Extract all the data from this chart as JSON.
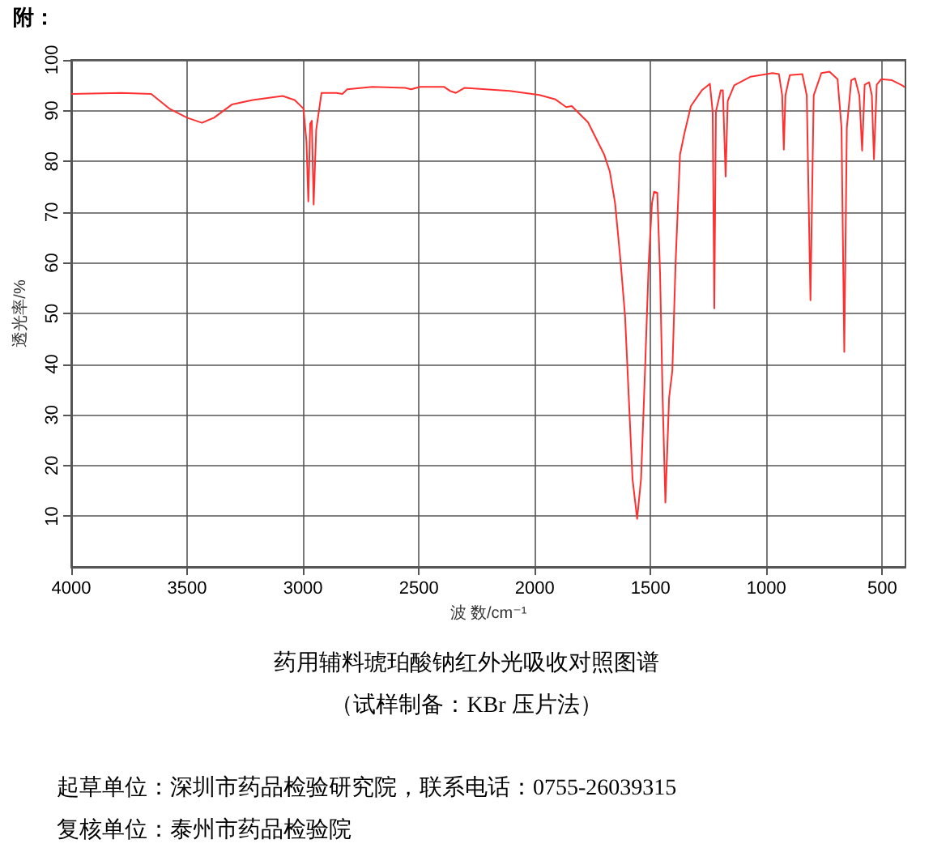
{
  "chart_data": {
    "type": "line",
    "title": "药用辅料琥珀酸钠红外光吸收对照图谱",
    "subtitle": "（试样制备：KBr 压片法）",
    "xlabel": "波 数/cm⁻¹",
    "ylabel": "透光率/%",
    "annotations": [
      "附：",
      "起草单位：深圳市药品检验研究院，联系电话：0755-26039315",
      "复核单位：泰州市药品检验院"
    ],
    "xlim": [
      4000,
      400
    ],
    "xticks": [
      4000,
      3500,
      3000,
      2500,
      2000,
      1500,
      1000,
      500
    ],
    "ylim": [
      0,
      100
    ],
    "yticks": [
      10,
      20,
      30,
      40,
      50,
      60,
      70,
      80,
      90,
      100
    ],
    "grid": true,
    "marker": "none",
    "line_style": "solid",
    "series": [
      {
        "color": "#ff3030",
        "x": [
          4000,
          3784,
          3655,
          3577,
          3500,
          3436,
          3384,
          3307,
          3217,
          3088,
          3036,
          2998,
          2985,
          2977,
          2969,
          2962,
          2954,
          2943,
          2920,
          2856,
          2830,
          2809,
          2701,
          2559,
          2534,
          2495,
          2392,
          2366,
          2340,
          2302,
          2108,
          1980,
          1910,
          1864,
          1840,
          1770,
          1700,
          1676,
          1653,
          1629,
          1610,
          1594,
          1578,
          1558,
          1541,
          1524,
          1508,
          1494,
          1485,
          1471,
          1459,
          1448,
          1436,
          1420,
          1406,
          1392,
          1373,
          1354,
          1326,
          1279,
          1244,
          1232,
          1225,
          1218,
          1197,
          1188,
          1176,
          1167,
          1139,
          1068,
          974,
          946,
          932,
          925,
          918,
          899,
          845,
          826,
          810,
          796,
          763,
          728,
          693,
          676,
          664,
          653,
          634,
          618,
          599,
          587,
          576,
          557,
          545,
          536,
          524,
          505,
          458,
          411,
          404
        ],
        "values": [
          93.3,
          93.5,
          93.3,
          90.4,
          88.6,
          87.6,
          88.6,
          91.2,
          92.1,
          92.9,
          92.1,
          90.4,
          83.9,
          72.1,
          87.4,
          88,
          71.5,
          86.2,
          93.5,
          93.5,
          93.3,
          94.2,
          94.7,
          94.5,
          94.2,
          94.7,
          94.7,
          93.9,
          93.5,
          94.5,
          93.9,
          93.1,
          92.2,
          90.7,
          90.9,
          87.7,
          81.3,
          78,
          71.7,
          60,
          49.4,
          33.4,
          17.4,
          9.5,
          17.4,
          38.7,
          60,
          71.7,
          74,
          73.8,
          57.9,
          33.4,
          12.7,
          33.4,
          38.7,
          60,
          81.3,
          85.5,
          90.9,
          94,
          95.3,
          89.8,
          51,
          89.8,
          94,
          94,
          77,
          91.9,
          95,
          96.7,
          97.4,
          97.2,
          93,
          82.3,
          93,
          97,
          97.2,
          93,
          52.6,
          93,
          97.4,
          97.7,
          96.2,
          86.6,
          42.4,
          86.6,
          96,
          96.4,
          93,
          82.1,
          95.1,
          95.6,
          93,
          80.4,
          95.1,
          96.2,
          96,
          94.9,
          94.6
        ]
      }
    ]
  }
}
